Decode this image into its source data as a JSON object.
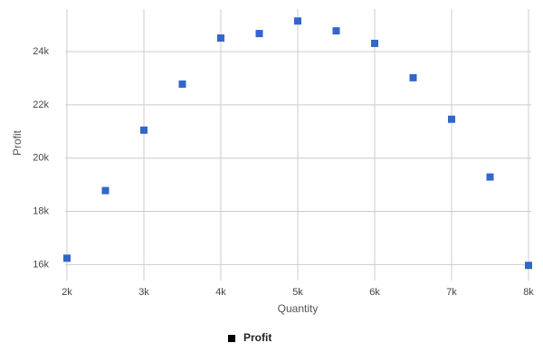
{
  "chart_data": {
    "type": "scatter",
    "x_label": "Quantity",
    "y_label": "Profit",
    "series": [
      {
        "name": "Profit",
        "color": "#3366cc",
        "x": [
          2000,
          2500,
          3000,
          3500,
          4000,
          4500,
          5000,
          5500,
          6000,
          6500,
          7000,
          7500,
          8000
        ],
        "values": [
          16240,
          18780,
          21050,
          22780,
          24510,
          24680,
          25150,
          24780,
          24310,
          23020,
          21460,
          19290,
          15970
        ]
      }
    ],
    "xlim": [
      2000,
      8000
    ],
    "xticks": [
      {
        "value": 2000,
        "label": "2k"
      },
      {
        "value": 3000,
        "label": "3k"
      },
      {
        "value": 4000,
        "label": "4k"
      },
      {
        "value": 5000,
        "label": "5k"
      },
      {
        "value": 6000,
        "label": "6k"
      },
      {
        "value": 7000,
        "label": "7k"
      },
      {
        "value": 8000,
        "label": "8k"
      }
    ],
    "ylim": [
      15400,
      25600
    ],
    "yticks": [
      {
        "value": 16000,
        "label": "16k"
      },
      {
        "value": 18000,
        "label": "18k"
      },
      {
        "value": 20000,
        "label": "20k"
      },
      {
        "value": 22000,
        "label": "22k"
      },
      {
        "value": 24000,
        "label": "24k"
      }
    ],
    "grid": true,
    "legend": "bottom"
  }
}
